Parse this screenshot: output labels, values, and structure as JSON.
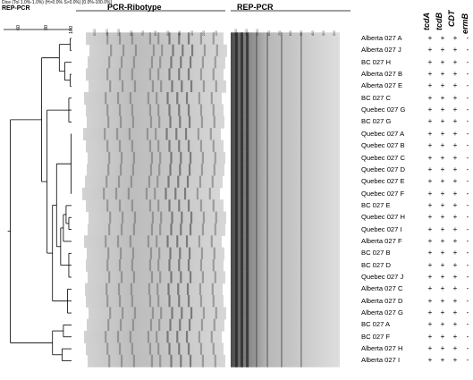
{
  "similarity_header": "Dice (Tol 1.0%-1.0%) (H>0.0% S>0.0%) [0.0%-100.0%]",
  "dendrogram_title": "REP-PCR",
  "scale_ticks": [
    "60",
    "80",
    "100"
  ],
  "ribotype_title": "PCR-Ribotype",
  "rep_title": "REP-PCR",
  "ribotype_ladder": [
    "2000",
    "1600",
    "1000",
    "800",
    "700",
    "600",
    "500",
    "400",
    "300",
    "200",
    "100"
  ],
  "rep_ladder": [
    "2000",
    "1500",
    "1000",
    "800",
    "700",
    "600",
    "500",
    "400",
    "300",
    "200"
  ],
  "gene_columns": [
    "tcdA",
    "tcdB",
    "CDT",
    "ermB"
  ],
  "samples": [
    {
      "name": "Alberta 027 A",
      "genes": [
        "+",
        "+",
        "+",
        "-"
      ]
    },
    {
      "name": "Alberta 027 J",
      "genes": [
        "+",
        "+",
        "+",
        "-"
      ]
    },
    {
      "name": "BC 027 H",
      "genes": [
        "+",
        "+",
        "+",
        "-"
      ]
    },
    {
      "name": "Alberta 027 B",
      "genes": [
        "+",
        "+",
        "+",
        "-"
      ]
    },
    {
      "name": "Alberta 027 E",
      "genes": [
        "+",
        "+",
        "+",
        "-"
      ]
    },
    {
      "name": "BC 027 C",
      "genes": [
        "+",
        "+",
        "+",
        "-"
      ]
    },
    {
      "name": "Quebec 027 G",
      "genes": [
        "+",
        "+",
        "+",
        "-"
      ]
    },
    {
      "name": "BC 027 G",
      "genes": [
        "+",
        "+",
        "+",
        "-"
      ]
    },
    {
      "name": "Quebec 027 A",
      "genes": [
        "+",
        "+",
        "+",
        "-"
      ]
    },
    {
      "name": "Quebec 027 B",
      "genes": [
        "+",
        "+",
        "+",
        "-"
      ]
    },
    {
      "name": "Quebec 027 C",
      "genes": [
        "+",
        "+",
        "+",
        "-"
      ]
    },
    {
      "name": "Quebec 027 D",
      "genes": [
        "+",
        "+",
        "+",
        "-"
      ]
    },
    {
      "name": "Quebec 027 E",
      "genes": [
        "+",
        "+",
        "+",
        "-"
      ]
    },
    {
      "name": "Quebec 027 F",
      "genes": [
        "+",
        "+",
        "+",
        "-"
      ]
    },
    {
      "name": "BC 027 E",
      "genes": [
        "+",
        "+",
        "+",
        "-"
      ]
    },
    {
      "name": "Quebec 027 H",
      "genes": [
        "+",
        "+",
        "+",
        "-"
      ]
    },
    {
      "name": "Quebec 027 I",
      "genes": [
        "+",
        "+",
        "+",
        "-"
      ]
    },
    {
      "name": "Alberta 027 F",
      "genes": [
        "+",
        "+",
        "+",
        "-"
      ]
    },
    {
      "name": "BC 027 B",
      "genes": [
        "+",
        "+",
        "+",
        "-"
      ]
    },
    {
      "name": "BC 027 D",
      "genes": [
        "+",
        "+",
        "+",
        "-"
      ]
    },
    {
      "name": "Quebec 027 J",
      "genes": [
        "+",
        "+",
        "+",
        "-"
      ]
    },
    {
      "name": "Alberta 027 C",
      "genes": [
        "+",
        "+",
        "+",
        "-"
      ]
    },
    {
      "name": "Alberta 027 D",
      "genes": [
        "+",
        "+",
        "+",
        "-"
      ]
    },
    {
      "name": "Alberta 027 G",
      "genes": [
        "+",
        "+",
        "+",
        "-"
      ]
    },
    {
      "name": "BC 027 A",
      "genes": [
        "+",
        "+",
        "+",
        "-"
      ]
    },
    {
      "name": "BC 027 F",
      "genes": [
        "+",
        "+",
        "+",
        "-"
      ]
    },
    {
      "name": "Alberta 027 H",
      "genes": [
        "+",
        "+",
        "+",
        "-"
      ]
    },
    {
      "name": "Alberta 027 I",
      "genes": [
        "+",
        "+",
        "+",
        "-"
      ]
    }
  ],
  "dendrogram": {
    "leaf_order": [
      0,
      1,
      2,
      3,
      4,
      5,
      6,
      7,
      8,
      9,
      10,
      11,
      12,
      13,
      14,
      15,
      16,
      17,
      18,
      19,
      20,
      21,
      22,
      23,
      24,
      25,
      26,
      27
    ],
    "nodes": [
      {
        "id": "n1",
        "children": [
          "L0",
          "L1"
        ],
        "similarity": 99
      },
      {
        "id": "n2",
        "children": [
          "L3",
          "L4"
        ],
        "similarity": 99
      },
      {
        "id": "n3",
        "children": [
          "L2",
          "n2"
        ],
        "similarity": 95
      },
      {
        "id": "n4",
        "children": [
          "n1",
          "n3"
        ],
        "similarity": 91
      },
      {
        "id": "n5",
        "children": [
          "L8",
          "L9",
          "L10",
          "L11",
          "L12",
          "L13"
        ],
        "similarity": 99.7
      },
      {
        "id": "n6",
        "children": [
          "L15",
          "L16"
        ],
        "similarity": 98
      },
      {
        "id": "n7",
        "children": [
          "L14",
          "n6"
        ],
        "similarity": 96
      },
      {
        "id": "n8",
        "children": [
          "n7",
          "L17"
        ],
        "similarity": 94
      },
      {
        "id": "n9",
        "children": [
          "L18",
          "L19",
          "L20"
        ],
        "similarity": 98
      },
      {
        "id": "n10",
        "children": [
          "n8",
          "n9"
        ],
        "similarity": 92
      },
      {
        "id": "n11",
        "children": [
          "n5",
          "n10"
        ],
        "similarity": 89
      },
      {
        "id": "n12",
        "children": [
          "L21",
          "L22",
          "L23"
        ],
        "similarity": 97
      },
      {
        "id": "n13",
        "children": [
          "n11",
          "n12"
        ],
        "similarity": 86
      },
      {
        "id": "n14",
        "children": [
          "L5",
          "L6",
          "L7"
        ],
        "similarity": 98
      },
      {
        "id": "n15",
        "children": [
          "n14",
          "n13"
        ],
        "similarity": 82
      },
      {
        "id": "n16",
        "children": [
          "n4",
          "n15"
        ],
        "similarity": 78
      },
      {
        "id": "n17",
        "children": [
          "L24",
          "L25"
        ],
        "similarity": 94
      },
      {
        "id": "n18",
        "children": [
          "L26",
          "L27"
        ],
        "similarity": 93
      },
      {
        "id": "n19",
        "children": [
          "n17",
          "n18"
        ],
        "similarity": 86
      },
      {
        "id": "n20",
        "children": [
          "n16",
          "n19"
        ],
        "similarity": 55
      }
    ]
  }
}
